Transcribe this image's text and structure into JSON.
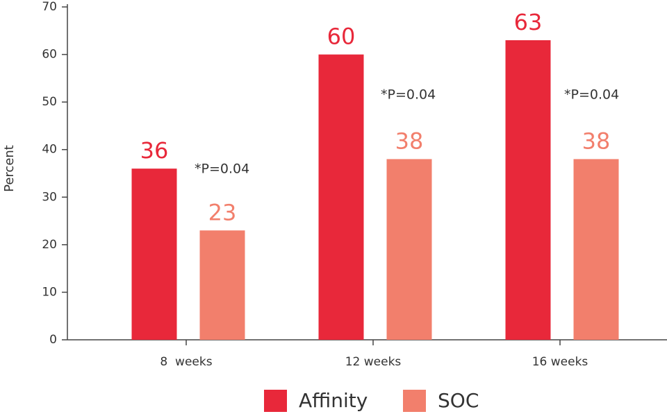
{
  "chart_data": {
    "type": "bar",
    "y_label": "Percent",
    "categories": [
      "8  weeks",
      "12 weeks",
      "16 weeks"
    ],
    "series": [
      {
        "name": "Affinity",
        "color": "#e8283a",
        "values": [
          36,
          60,
          63
        ]
      },
      {
        "name": "SOC",
        "color": "#f27f6c",
        "values": [
          23,
          38,
          38
        ]
      }
    ],
    "annotations": [
      "*P=0.04",
      "*P=0.04",
      "*P=0.04"
    ],
    "ylim": [
      0,
      70
    ],
    "yticks": [
      0,
      10,
      20,
      30,
      40,
      50,
      60,
      70
    ],
    "grid": false
  }
}
